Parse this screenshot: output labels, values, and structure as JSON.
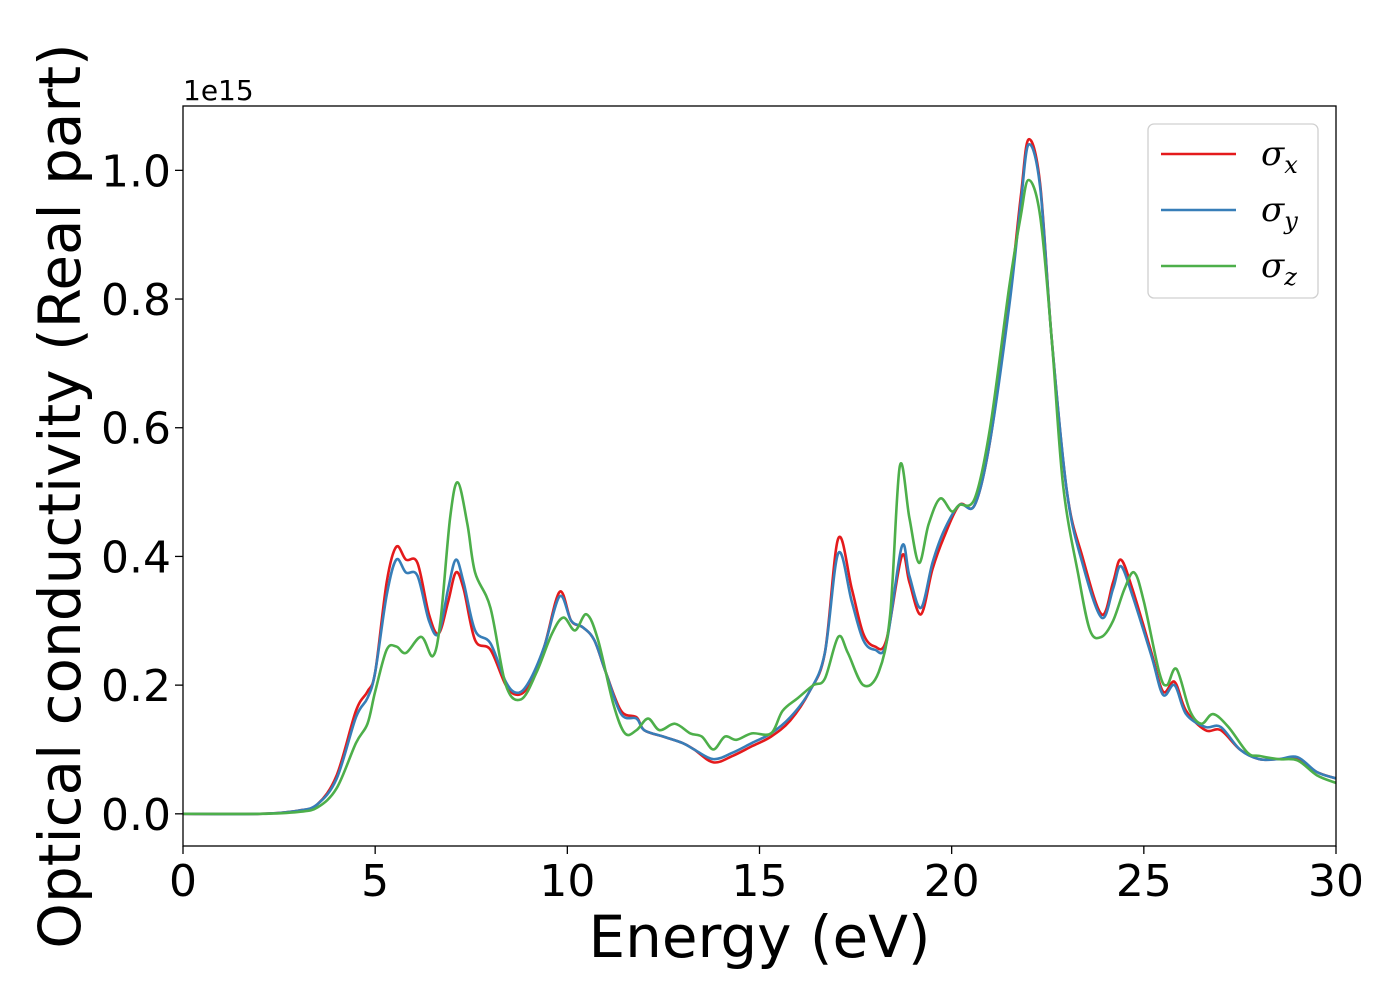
{
  "chart_data": {
    "type": "line",
    "title": "",
    "xlabel": "Energy (eV)",
    "ylabel": "Optical conductivity (Real part)",
    "y_offset_label": "1e15",
    "xlim": [
      0,
      30
    ],
    "ylim": [
      -0.05,
      1.1
    ],
    "x_ticks": [
      0,
      5,
      10,
      15,
      20,
      25,
      30
    ],
    "x_tick_labels": [
      "0",
      "5",
      "10",
      "15",
      "20",
      "25",
      "30"
    ],
    "y_ticks": [
      0.0,
      0.2,
      0.4,
      0.6,
      0.8,
      1.0
    ],
    "y_tick_labels": [
      "0.0",
      "0.2",
      "0.4",
      "0.6",
      "0.8",
      "1.0"
    ],
    "grid": false,
    "legend_position": "top-right",
    "series": [
      {
        "name": "σx",
        "legend_base": "σ",
        "legend_sub": "x",
        "color": "#e41a1c",
        "points": [
          [
            0,
            0
          ],
          [
            2,
            0
          ],
          [
            3,
            0.005
          ],
          [
            3.5,
            0.015
          ],
          [
            4,
            0.06
          ],
          [
            4.5,
            0.16
          ],
          [
            4.8,
            0.19
          ],
          [
            5,
            0.22
          ],
          [
            5.3,
            0.36
          ],
          [
            5.55,
            0.415
          ],
          [
            5.8,
            0.395
          ],
          [
            6.1,
            0.39
          ],
          [
            6.4,
            0.31
          ],
          [
            6.65,
            0.28
          ],
          [
            6.9,
            0.33
          ],
          [
            7.1,
            0.375
          ],
          [
            7.3,
            0.35
          ],
          [
            7.6,
            0.27
          ],
          [
            8,
            0.255
          ],
          [
            8.4,
            0.2
          ],
          [
            8.7,
            0.185
          ],
          [
            9,
            0.2
          ],
          [
            9.4,
            0.26
          ],
          [
            9.8,
            0.345
          ],
          [
            10.1,
            0.3
          ],
          [
            10.4,
            0.29
          ],
          [
            10.7,
            0.27
          ],
          [
            11,
            0.22
          ],
          [
            11.4,
            0.16
          ],
          [
            11.8,
            0.15
          ],
          [
            12,
            0.13
          ],
          [
            12.5,
            0.12
          ],
          [
            13,
            0.11
          ],
          [
            13.3,
            0.1
          ],
          [
            13.8,
            0.08
          ],
          [
            14.3,
            0.09
          ],
          [
            14.8,
            0.105
          ],
          [
            15.3,
            0.12
          ],
          [
            15.8,
            0.145
          ],
          [
            16.3,
            0.19
          ],
          [
            16.7,
            0.25
          ],
          [
            17.05,
            0.428
          ],
          [
            17.4,
            0.35
          ],
          [
            17.7,
            0.28
          ],
          [
            18,
            0.26
          ],
          [
            18.3,
            0.27
          ],
          [
            18.7,
            0.4
          ],
          [
            18.9,
            0.36
          ],
          [
            19.2,
            0.31
          ],
          [
            19.5,
            0.38
          ],
          [
            19.8,
            0.43
          ],
          [
            20.2,
            0.48
          ],
          [
            20.6,
            0.48
          ],
          [
            21,
            0.58
          ],
          [
            21.5,
            0.8
          ],
          [
            21.8,
            0.96
          ],
          [
            22,
            1.048
          ],
          [
            22.3,
            0.98
          ],
          [
            22.6,
            0.74
          ],
          [
            23,
            0.5
          ],
          [
            23.4,
            0.4
          ],
          [
            23.9,
            0.31
          ],
          [
            24.2,
            0.36
          ],
          [
            24.4,
            0.395
          ],
          [
            24.7,
            0.35
          ],
          [
            25.2,
            0.25
          ],
          [
            25.5,
            0.19
          ],
          [
            25.8,
            0.205
          ],
          [
            26.1,
            0.16
          ],
          [
            26.6,
            0.13
          ],
          [
            27,
            0.13
          ],
          [
            27.5,
            0.1
          ],
          [
            28,
            0.085
          ],
          [
            28.5,
            0.085
          ],
          [
            29,
            0.085
          ],
          [
            29.5,
            0.065
          ],
          [
            30,
            0.055
          ]
        ]
      },
      {
        "name": "σy",
        "legend_base": "σ",
        "legend_sub": "y",
        "color": "#377eb8",
        "points": [
          [
            0,
            0
          ],
          [
            2,
            0
          ],
          [
            3,
            0.005
          ],
          [
            3.5,
            0.015
          ],
          [
            4,
            0.055
          ],
          [
            4.5,
            0.15
          ],
          [
            4.8,
            0.18
          ],
          [
            5,
            0.22
          ],
          [
            5.3,
            0.34
          ],
          [
            5.55,
            0.395
          ],
          [
            5.8,
            0.375
          ],
          [
            6.1,
            0.37
          ],
          [
            6.4,
            0.3
          ],
          [
            6.65,
            0.28
          ],
          [
            6.9,
            0.35
          ],
          [
            7.1,
            0.395
          ],
          [
            7.3,
            0.36
          ],
          [
            7.6,
            0.285
          ],
          [
            8,
            0.265
          ],
          [
            8.4,
            0.205
          ],
          [
            8.7,
            0.188
          ],
          [
            9,
            0.205
          ],
          [
            9.4,
            0.26
          ],
          [
            9.8,
            0.338
          ],
          [
            10.1,
            0.3
          ],
          [
            10.4,
            0.29
          ],
          [
            10.7,
            0.27
          ],
          [
            11,
            0.22
          ],
          [
            11.4,
            0.155
          ],
          [
            11.8,
            0.148
          ],
          [
            12,
            0.13
          ],
          [
            12.5,
            0.12
          ],
          [
            13,
            0.11
          ],
          [
            13.3,
            0.1
          ],
          [
            13.8,
            0.085
          ],
          [
            14.3,
            0.095
          ],
          [
            14.8,
            0.11
          ],
          [
            15.3,
            0.125
          ],
          [
            15.8,
            0.15
          ],
          [
            16.3,
            0.19
          ],
          [
            16.7,
            0.25
          ],
          [
            17.05,
            0.405
          ],
          [
            17.4,
            0.33
          ],
          [
            17.7,
            0.27
          ],
          [
            18,
            0.255
          ],
          [
            18.3,
            0.265
          ],
          [
            18.7,
            0.415
          ],
          [
            18.9,
            0.37
          ],
          [
            19.2,
            0.32
          ],
          [
            19.5,
            0.39
          ],
          [
            19.8,
            0.44
          ],
          [
            20.2,
            0.48
          ],
          [
            20.6,
            0.48
          ],
          [
            21,
            0.58
          ],
          [
            21.5,
            0.79
          ],
          [
            21.8,
            0.95
          ],
          [
            22,
            1.04
          ],
          [
            22.3,
            0.975
          ],
          [
            22.6,
            0.74
          ],
          [
            23,
            0.5
          ],
          [
            23.4,
            0.39
          ],
          [
            23.9,
            0.305
          ],
          [
            24.2,
            0.35
          ],
          [
            24.4,
            0.385
          ],
          [
            24.7,
            0.34
          ],
          [
            25.2,
            0.245
          ],
          [
            25.5,
            0.185
          ],
          [
            25.8,
            0.2
          ],
          [
            26.1,
            0.155
          ],
          [
            26.6,
            0.135
          ],
          [
            27,
            0.135
          ],
          [
            27.5,
            0.1
          ],
          [
            28,
            0.085
          ],
          [
            28.5,
            0.085
          ],
          [
            29,
            0.088
          ],
          [
            29.5,
            0.065
          ],
          [
            30,
            0.055
          ]
        ]
      },
      {
        "name": "σz",
        "legend_base": "σ",
        "legend_sub": "z",
        "color": "#4daf4a",
        "points": [
          [
            0,
            0
          ],
          [
            2,
            0
          ],
          [
            3,
            0.003
          ],
          [
            3.5,
            0.01
          ],
          [
            4,
            0.04
          ],
          [
            4.5,
            0.11
          ],
          [
            4.8,
            0.14
          ],
          [
            5,
            0.19
          ],
          [
            5.3,
            0.255
          ],
          [
            5.55,
            0.26
          ],
          [
            5.8,
            0.25
          ],
          [
            6.2,
            0.275
          ],
          [
            6.5,
            0.245
          ],
          [
            6.7,
            0.3
          ],
          [
            6.95,
            0.46
          ],
          [
            7.15,
            0.515
          ],
          [
            7.4,
            0.45
          ],
          [
            7.6,
            0.375
          ],
          [
            8,
            0.32
          ],
          [
            8.4,
            0.2
          ],
          [
            8.8,
            0.178
          ],
          [
            9.2,
            0.22
          ],
          [
            9.6,
            0.28
          ],
          [
            9.9,
            0.305
          ],
          [
            10.2,
            0.285
          ],
          [
            10.5,
            0.31
          ],
          [
            10.8,
            0.27
          ],
          [
            11.2,
            0.17
          ],
          [
            11.5,
            0.125
          ],
          [
            11.8,
            0.13
          ],
          [
            12.1,
            0.148
          ],
          [
            12.4,
            0.13
          ],
          [
            12.8,
            0.14
          ],
          [
            13.2,
            0.125
          ],
          [
            13.5,
            0.12
          ],
          [
            13.8,
            0.1
          ],
          [
            14.1,
            0.12
          ],
          [
            14.4,
            0.115
          ],
          [
            14.8,
            0.125
          ],
          [
            15.3,
            0.125
          ],
          [
            15.6,
            0.16
          ],
          [
            16,
            0.18
          ],
          [
            16.4,
            0.2
          ],
          [
            16.7,
            0.21
          ],
          [
            17.05,
            0.275
          ],
          [
            17.3,
            0.25
          ],
          [
            17.7,
            0.2
          ],
          [
            18.1,
            0.22
          ],
          [
            18.4,
            0.31
          ],
          [
            18.65,
            0.54
          ],
          [
            18.9,
            0.46
          ],
          [
            19.15,
            0.39
          ],
          [
            19.4,
            0.45
          ],
          [
            19.7,
            0.49
          ],
          [
            20,
            0.47
          ],
          [
            20.2,
            0.48
          ],
          [
            20.6,
            0.49
          ],
          [
            21,
            0.6
          ],
          [
            21.5,
            0.82
          ],
          [
            21.8,
            0.93
          ],
          [
            22,
            0.985
          ],
          [
            22.3,
            0.93
          ],
          [
            22.6,
            0.74
          ],
          [
            22.9,
            0.51
          ],
          [
            23.3,
            0.37
          ],
          [
            23.6,
            0.285
          ],
          [
            23.9,
            0.275
          ],
          [
            24.2,
            0.3
          ],
          [
            24.5,
            0.35
          ],
          [
            24.75,
            0.375
          ],
          [
            25,
            0.33
          ],
          [
            25.4,
            0.22
          ],
          [
            25.6,
            0.2
          ],
          [
            25.85,
            0.225
          ],
          [
            26.2,
            0.16
          ],
          [
            26.5,
            0.14
          ],
          [
            26.8,
            0.155
          ],
          [
            27.2,
            0.135
          ],
          [
            27.7,
            0.095
          ],
          [
            28,
            0.09
          ],
          [
            28.5,
            0.085
          ],
          [
            29,
            0.083
          ],
          [
            29.5,
            0.06
          ],
          [
            30,
            0.048
          ]
        ]
      }
    ]
  }
}
